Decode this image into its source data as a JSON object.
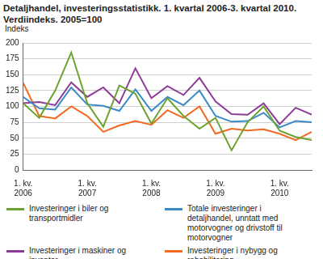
{
  "chart_data": {
    "type": "line",
    "title": "Detaljhandel, investeringsstatistikk. 1. kvartal 2006-3. kvartal 2010. Verdiindeks. 2005=100",
    "ylabel": "Indeks",
    "categories": [
      "1. kv. 2006",
      null,
      null,
      null,
      "1. kv. 2007",
      null,
      null,
      null,
      "1. kv. 2008",
      null,
      null,
      null,
      "1. kv. 2009",
      null,
      null,
      null,
      "1. kv. 2010",
      null,
      null
    ],
    "series": [
      {
        "name": "Investeringer i biler og transportmidler",
        "color": "#6aa42f",
        "values": [
          105,
          82,
          125,
          185,
          105,
          68,
          133,
          120,
          73,
          113,
          85,
          65,
          82,
          31,
          75,
          100,
          62,
          52,
          47
        ]
      },
      {
        "name": "Totale investeringer i detaljhandel, unntatt med motorvogner og drivstoff til motorvogner",
        "color": "#3a8ac8",
        "values": [
          115,
          97,
          95,
          130,
          103,
          101,
          93,
          127,
          93,
          115,
          102,
          125,
          85,
          76,
          77,
          90,
          67,
          77,
          75
        ]
      },
      {
        "name": "Investeringer i maskiner og inventar",
        "color": "#8c3c96",
        "values": [
          105,
          107,
          102,
          138,
          115,
          130,
          105,
          160,
          113,
          132,
          118,
          145,
          108,
          88,
          87,
          105,
          72,
          98,
          87
        ]
      },
      {
        "name": "Investeringer i nybygg og rehabilitering",
        "color": "#f26a21",
        "values": [
          137,
          85,
          81,
          100,
          85,
          60,
          70,
          77,
          71,
          94,
          82,
          100,
          57,
          65,
          62,
          64,
          57,
          47,
          60
        ]
      }
    ],
    "ylim": [
      0,
      200
    ],
    "yticks": [
      0,
      25,
      50,
      75,
      100,
      125,
      150,
      175,
      200
    ],
    "grid": true,
    "legend": "bottom"
  }
}
